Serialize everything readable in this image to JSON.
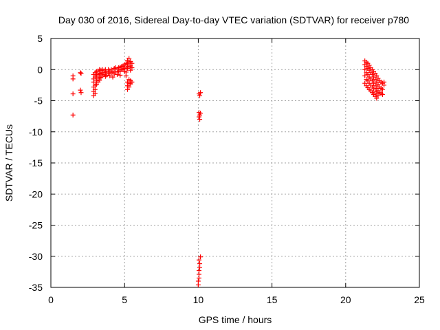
{
  "chart_data": {
    "type": "scatter",
    "title": "Day 030 of 2016, Sidereal Day-to-day VTEC variation (SDTVAR) for receiver p780",
    "xlabel": "GPS time / hours",
    "ylabel": "SDTVAR / TECUs",
    "xlim": [
      0,
      25
    ],
    "ylim": [
      -35,
      5
    ],
    "xticks": [
      0,
      5,
      10,
      15,
      20,
      25
    ],
    "yticks": [
      5,
      0,
      -5,
      -10,
      -15,
      -20,
      -25,
      -30,
      -35
    ],
    "grid": true,
    "marker": "+",
    "color": "#ff0000",
    "series": [
      {
        "name": "SDTVAR",
        "points": [
          [
            1.5,
            -1.0
          ],
          [
            1.5,
            -1.5
          ],
          [
            1.5,
            -3.9
          ],
          [
            1.5,
            -7.3
          ],
          [
            2.0,
            -0.5
          ],
          [
            2.05,
            -0.6
          ],
          [
            2.0,
            -3.3
          ],
          [
            2.05,
            -3.7
          ],
          [
            2.9,
            -0.8
          ],
          [
            2.9,
            -1.5
          ],
          [
            2.9,
            -2.0
          ],
          [
            2.9,
            -2.8
          ],
          [
            2.9,
            -3.5
          ],
          [
            2.9,
            -4.2
          ],
          [
            3.0,
            -0.5
          ],
          [
            3.0,
            -1.2
          ],
          [
            3.0,
            -2.5
          ],
          [
            3.0,
            -3.2
          ],
          [
            3.0,
            -3.8
          ],
          [
            3.1,
            -0.3
          ],
          [
            3.1,
            -1.0
          ],
          [
            3.1,
            -1.8
          ],
          [
            3.1,
            -2.4
          ],
          [
            3.2,
            -0.2
          ],
          [
            3.2,
            -0.8
          ],
          [
            3.2,
            -1.5
          ],
          [
            3.2,
            -2.0
          ],
          [
            3.3,
            0.0
          ],
          [
            3.3,
            -0.6
          ],
          [
            3.3,
            -1.2
          ],
          [
            3.3,
            -1.7
          ],
          [
            3.4,
            -0.1
          ],
          [
            3.4,
            -0.7
          ],
          [
            3.4,
            -1.3
          ],
          [
            3.5,
            0.0
          ],
          [
            3.5,
            -0.5
          ],
          [
            3.5,
            -1.0
          ],
          [
            3.6,
            -0.2
          ],
          [
            3.6,
            -0.8
          ],
          [
            3.7,
            0.0
          ],
          [
            3.7,
            -0.5
          ],
          [
            3.7,
            -1.1
          ],
          [
            3.8,
            -0.3
          ],
          [
            3.8,
            -0.9
          ],
          [
            3.9,
            0.0
          ],
          [
            3.9,
            -0.6
          ],
          [
            4.0,
            -0.2
          ],
          [
            4.0,
            -1.0
          ],
          [
            4.1,
            0.0
          ],
          [
            4.1,
            -0.5
          ],
          [
            4.2,
            -0.3
          ],
          [
            4.2,
            -1.2
          ],
          [
            4.3,
            0.2
          ],
          [
            4.3,
            -0.7
          ],
          [
            4.4,
            0.3
          ],
          [
            4.4,
            -0.4
          ],
          [
            4.5,
            0.1
          ],
          [
            4.5,
            -0.8
          ],
          [
            4.6,
            0.3
          ],
          [
            4.6,
            -0.3
          ],
          [
            4.7,
            0.4
          ],
          [
            4.7,
            -0.2
          ],
          [
            4.7,
            -0.9
          ],
          [
            4.8,
            0.5
          ],
          [
            4.8,
            0.0
          ],
          [
            4.9,
            0.6
          ],
          [
            4.9,
            0.1
          ],
          [
            5.0,
            0.8
          ],
          [
            5.0,
            0.2
          ],
          [
            5.0,
            -0.3
          ],
          [
            5.1,
            1.0
          ],
          [
            5.1,
            0.4
          ],
          [
            5.1,
            -0.4
          ],
          [
            5.1,
            -1.0
          ],
          [
            5.2,
            1.5
          ],
          [
            5.2,
            0.9
          ],
          [
            5.2,
            0.2
          ],
          [
            5.2,
            -2.0
          ],
          [
            5.2,
            -2.6
          ],
          [
            5.2,
            -3.2
          ],
          [
            5.3,
            1.8
          ],
          [
            5.3,
            1.2
          ],
          [
            5.3,
            0.5
          ],
          [
            5.3,
            -1.6
          ],
          [
            5.3,
            -2.2
          ],
          [
            5.3,
            -2.8
          ],
          [
            5.4,
            1.3
          ],
          [
            5.4,
            0.6
          ],
          [
            5.4,
            -0.1
          ],
          [
            5.4,
            -1.8
          ],
          [
            5.4,
            -2.3
          ],
          [
            5.5,
            1.0
          ],
          [
            5.5,
            0.3
          ],
          [
            5.5,
            -2.0
          ],
          [
            10.05,
            -3.9
          ],
          [
            10.1,
            -4.2
          ],
          [
            10.15,
            -3.7
          ],
          [
            10.05,
            -6.9
          ],
          [
            10.05,
            -7.6
          ],
          [
            10.1,
            -7.3
          ],
          [
            10.1,
            -8.0
          ],
          [
            10.15,
            -7.0
          ],
          [
            10.05,
            -30.6
          ],
          [
            10.1,
            -31.2
          ],
          [
            10.1,
            -31.8
          ],
          [
            10.05,
            -32.3
          ],
          [
            10.05,
            -32.9
          ],
          [
            10.05,
            -33.5
          ],
          [
            10.0,
            -34.0
          ],
          [
            10.0,
            -34.6
          ],
          [
            10.15,
            -30.1
          ],
          [
            21.3,
            1.4
          ],
          [
            21.3,
            0.8
          ],
          [
            21.3,
            0.0
          ],
          [
            21.3,
            -1.0
          ],
          [
            21.3,
            -2.2
          ],
          [
            21.4,
            1.2
          ],
          [
            21.4,
            0.5
          ],
          [
            21.4,
            -0.5
          ],
          [
            21.4,
            -1.6
          ],
          [
            21.4,
            -2.6
          ],
          [
            21.5,
            1.0
          ],
          [
            21.5,
            0.2
          ],
          [
            21.5,
            -0.8
          ],
          [
            21.5,
            -1.8
          ],
          [
            21.5,
            -2.9
          ],
          [
            21.6,
            0.7
          ],
          [
            21.6,
            -0.1
          ],
          [
            21.6,
            -1.2
          ],
          [
            21.6,
            -2.2
          ],
          [
            21.6,
            -3.2
          ],
          [
            21.7,
            0.3
          ],
          [
            21.7,
            -0.5
          ],
          [
            21.7,
            -1.5
          ],
          [
            21.7,
            -2.5
          ],
          [
            21.7,
            -3.4
          ],
          [
            21.8,
            0.0
          ],
          [
            21.8,
            -0.8
          ],
          [
            21.8,
            -1.8
          ],
          [
            21.8,
            -2.8
          ],
          [
            21.8,
            -3.7
          ],
          [
            21.9,
            -0.3
          ],
          [
            21.9,
            -1.2
          ],
          [
            21.9,
            -2.2
          ],
          [
            21.9,
            -3.1
          ],
          [
            21.9,
            -4.0
          ],
          [
            22.0,
            -0.6
          ],
          [
            22.0,
            -1.6
          ],
          [
            22.0,
            -2.6
          ],
          [
            22.0,
            -3.5
          ],
          [
            22.0,
            -4.3
          ],
          [
            22.1,
            -1.0
          ],
          [
            22.1,
            -2.0
          ],
          [
            22.1,
            -3.0
          ],
          [
            22.1,
            -3.9
          ],
          [
            22.1,
            -4.6
          ],
          [
            22.2,
            -1.4
          ],
          [
            22.2,
            -2.4
          ],
          [
            22.2,
            -3.4
          ],
          [
            22.2,
            -4.2
          ],
          [
            22.3,
            -1.8
          ],
          [
            22.3,
            -2.8
          ],
          [
            22.3,
            -3.7
          ],
          [
            22.4,
            -2.0
          ],
          [
            22.4,
            -3.0
          ],
          [
            22.4,
            -3.8
          ],
          [
            22.5,
            -2.2
          ],
          [
            22.5,
            -3.2
          ],
          [
            22.5,
            -4.0
          ],
          [
            22.6,
            -2.0
          ],
          [
            22.6,
            -2.5
          ]
        ]
      }
    ]
  }
}
